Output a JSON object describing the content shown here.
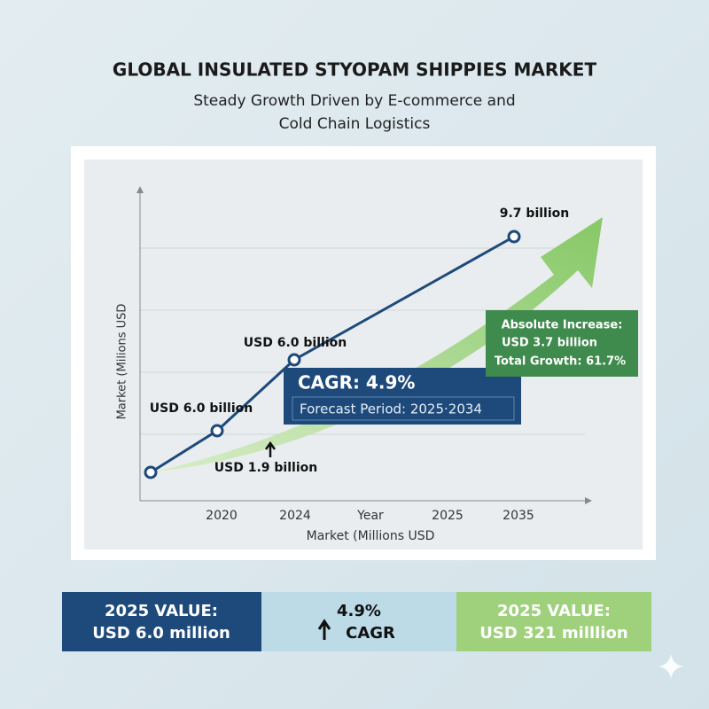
{
  "header": {
    "title": "GLOBAL INSULATED STYOPAM SHIPPIES MARKET",
    "subtitle": [
      "Steady Growth Driven by E-commerce and",
      "Cold Chain Logistics"
    ]
  },
  "chart": {
    "y_axis_label": "Market (Milions USD",
    "x_axis_label": "Market (Millions USD",
    "x_labels": [
      "2020",
      "2024",
      "Year",
      "2025",
      "2035"
    ],
    "point_labels": [
      "USD 6.0 billion",
      "USD 6.0 billion",
      "9.7 billion",
      "USD 1.9 billion"
    ],
    "cagr_box": {
      "title": "CAGR: 4.9%",
      "subtitle": "Forecast Period: 2025·2034"
    },
    "increase_box": [
      "Absolute Increase:",
      "USD 3.7 billion",
      "Total Growth: 61.7%"
    ]
  },
  "summary": [
    {
      "lines": [
        "2025 VALUE:",
        "USD 6.0 million"
      ]
    },
    {
      "lines": [
        "4.9%",
        "CAGR"
      ]
    },
    {
      "lines": [
        "2025 VALUE:",
        "USD 321 milllion"
      ]
    }
  ]
}
